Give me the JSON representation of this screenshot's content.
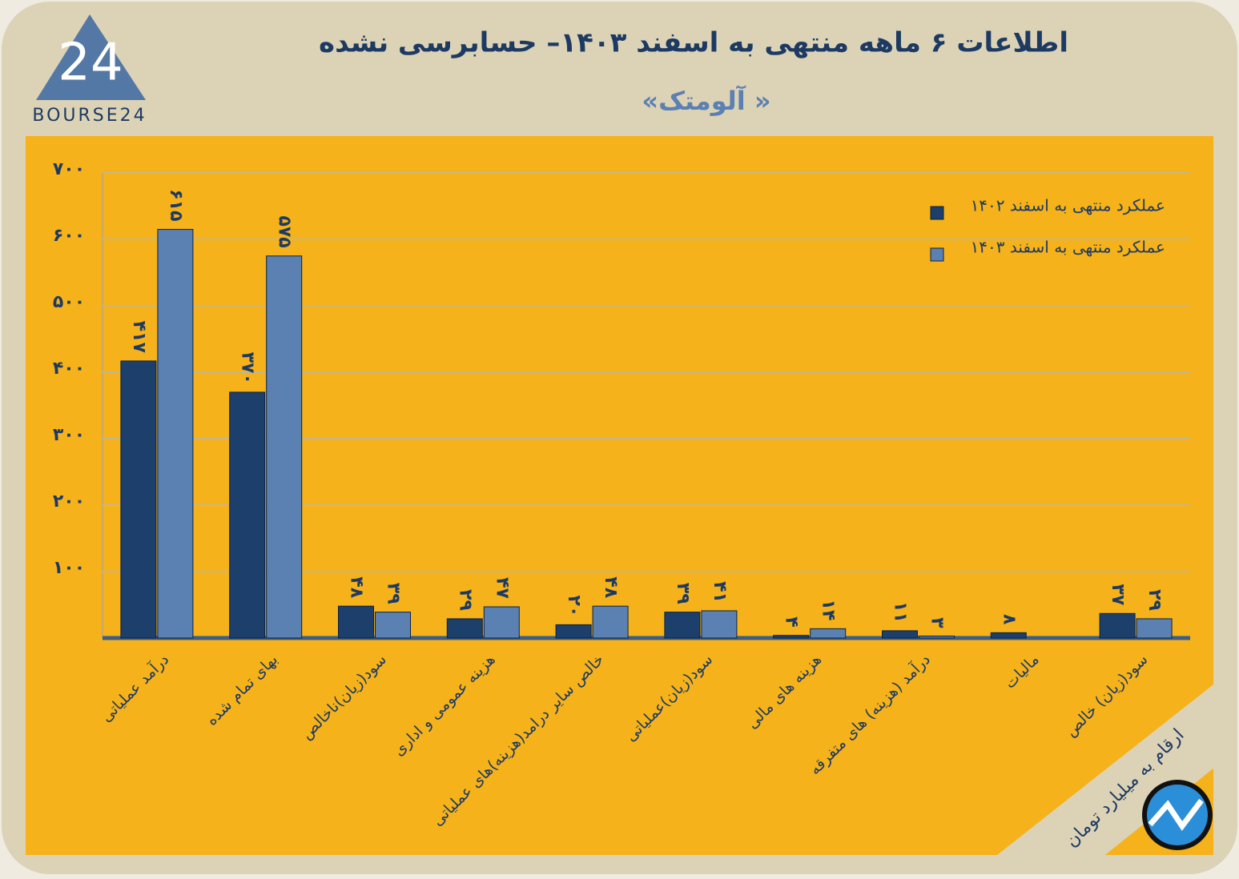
{
  "brand": {
    "logo_number": "24",
    "logo_text": "BOURSE24"
  },
  "note": "ارقام به میلیارد تومان",
  "chart_data": {
    "type": "bar",
    "title": "اطلاعات ۶ ماهه منتهی به اسفند ۱۴۰۳– حسابرسی نشده",
    "subtitle": "« آلومتک»",
    "categories": [
      "درآمد عملیاتی",
      "بهای تمام شده",
      "سود(زیان)ناخالص",
      "هزینه عمومی و اداری",
      "خالص سایر درامد(هزینه)های عملیاتی",
      "سود(زیان)عملیاتی",
      "هزینه های مالی",
      "درآمد (هزینه) های متفرقه",
      "مالیات",
      "سود(زیان) خالص"
    ],
    "series": [
      {
        "name": "عملکرد منتهی به اسفند ۱۴۰۲",
        "color": "#1c3f6b",
        "values": [
          417,
          370,
          48,
          29,
          20,
          39,
          4,
          11,
          8,
          37
        ],
        "value_labels": [
          "۴۱۷",
          "۳۷۰",
          "۴۸",
          "۲۹",
          "۲۰",
          "۳۹",
          "۴",
          "۱۱",
          "۸",
          "۳۷"
        ]
      },
      {
        "name": "عملکرد منتهی به اسفند ۱۴۰۳",
        "color": "#5b80b2",
        "values": [
          615,
          575,
          39,
          47,
          48,
          41,
          14,
          3,
          null,
          29
        ],
        "value_labels": [
          "۶۱۵",
          "۵۷۵",
          "۳۹",
          "۴۷",
          "۴۸",
          "۴۱",
          "۱۴",
          "۳",
          null,
          "۲۹"
        ]
      }
    ],
    "ylim": [
      0,
      700
    ],
    "yticks": [
      {
        "value": 100,
        "label": "۱۰۰"
      },
      {
        "value": 200,
        "label": "۲۰۰"
      },
      {
        "value": 300,
        "label": "۳۰۰"
      },
      {
        "value": 400,
        "label": "۴۰۰"
      },
      {
        "value": 500,
        "label": "۵۰۰"
      },
      {
        "value": 600,
        "label": "۶۰۰"
      },
      {
        "value": 700,
        "label": "۷۰۰"
      }
    ],
    "grid": true,
    "legend": "top-right"
  }
}
